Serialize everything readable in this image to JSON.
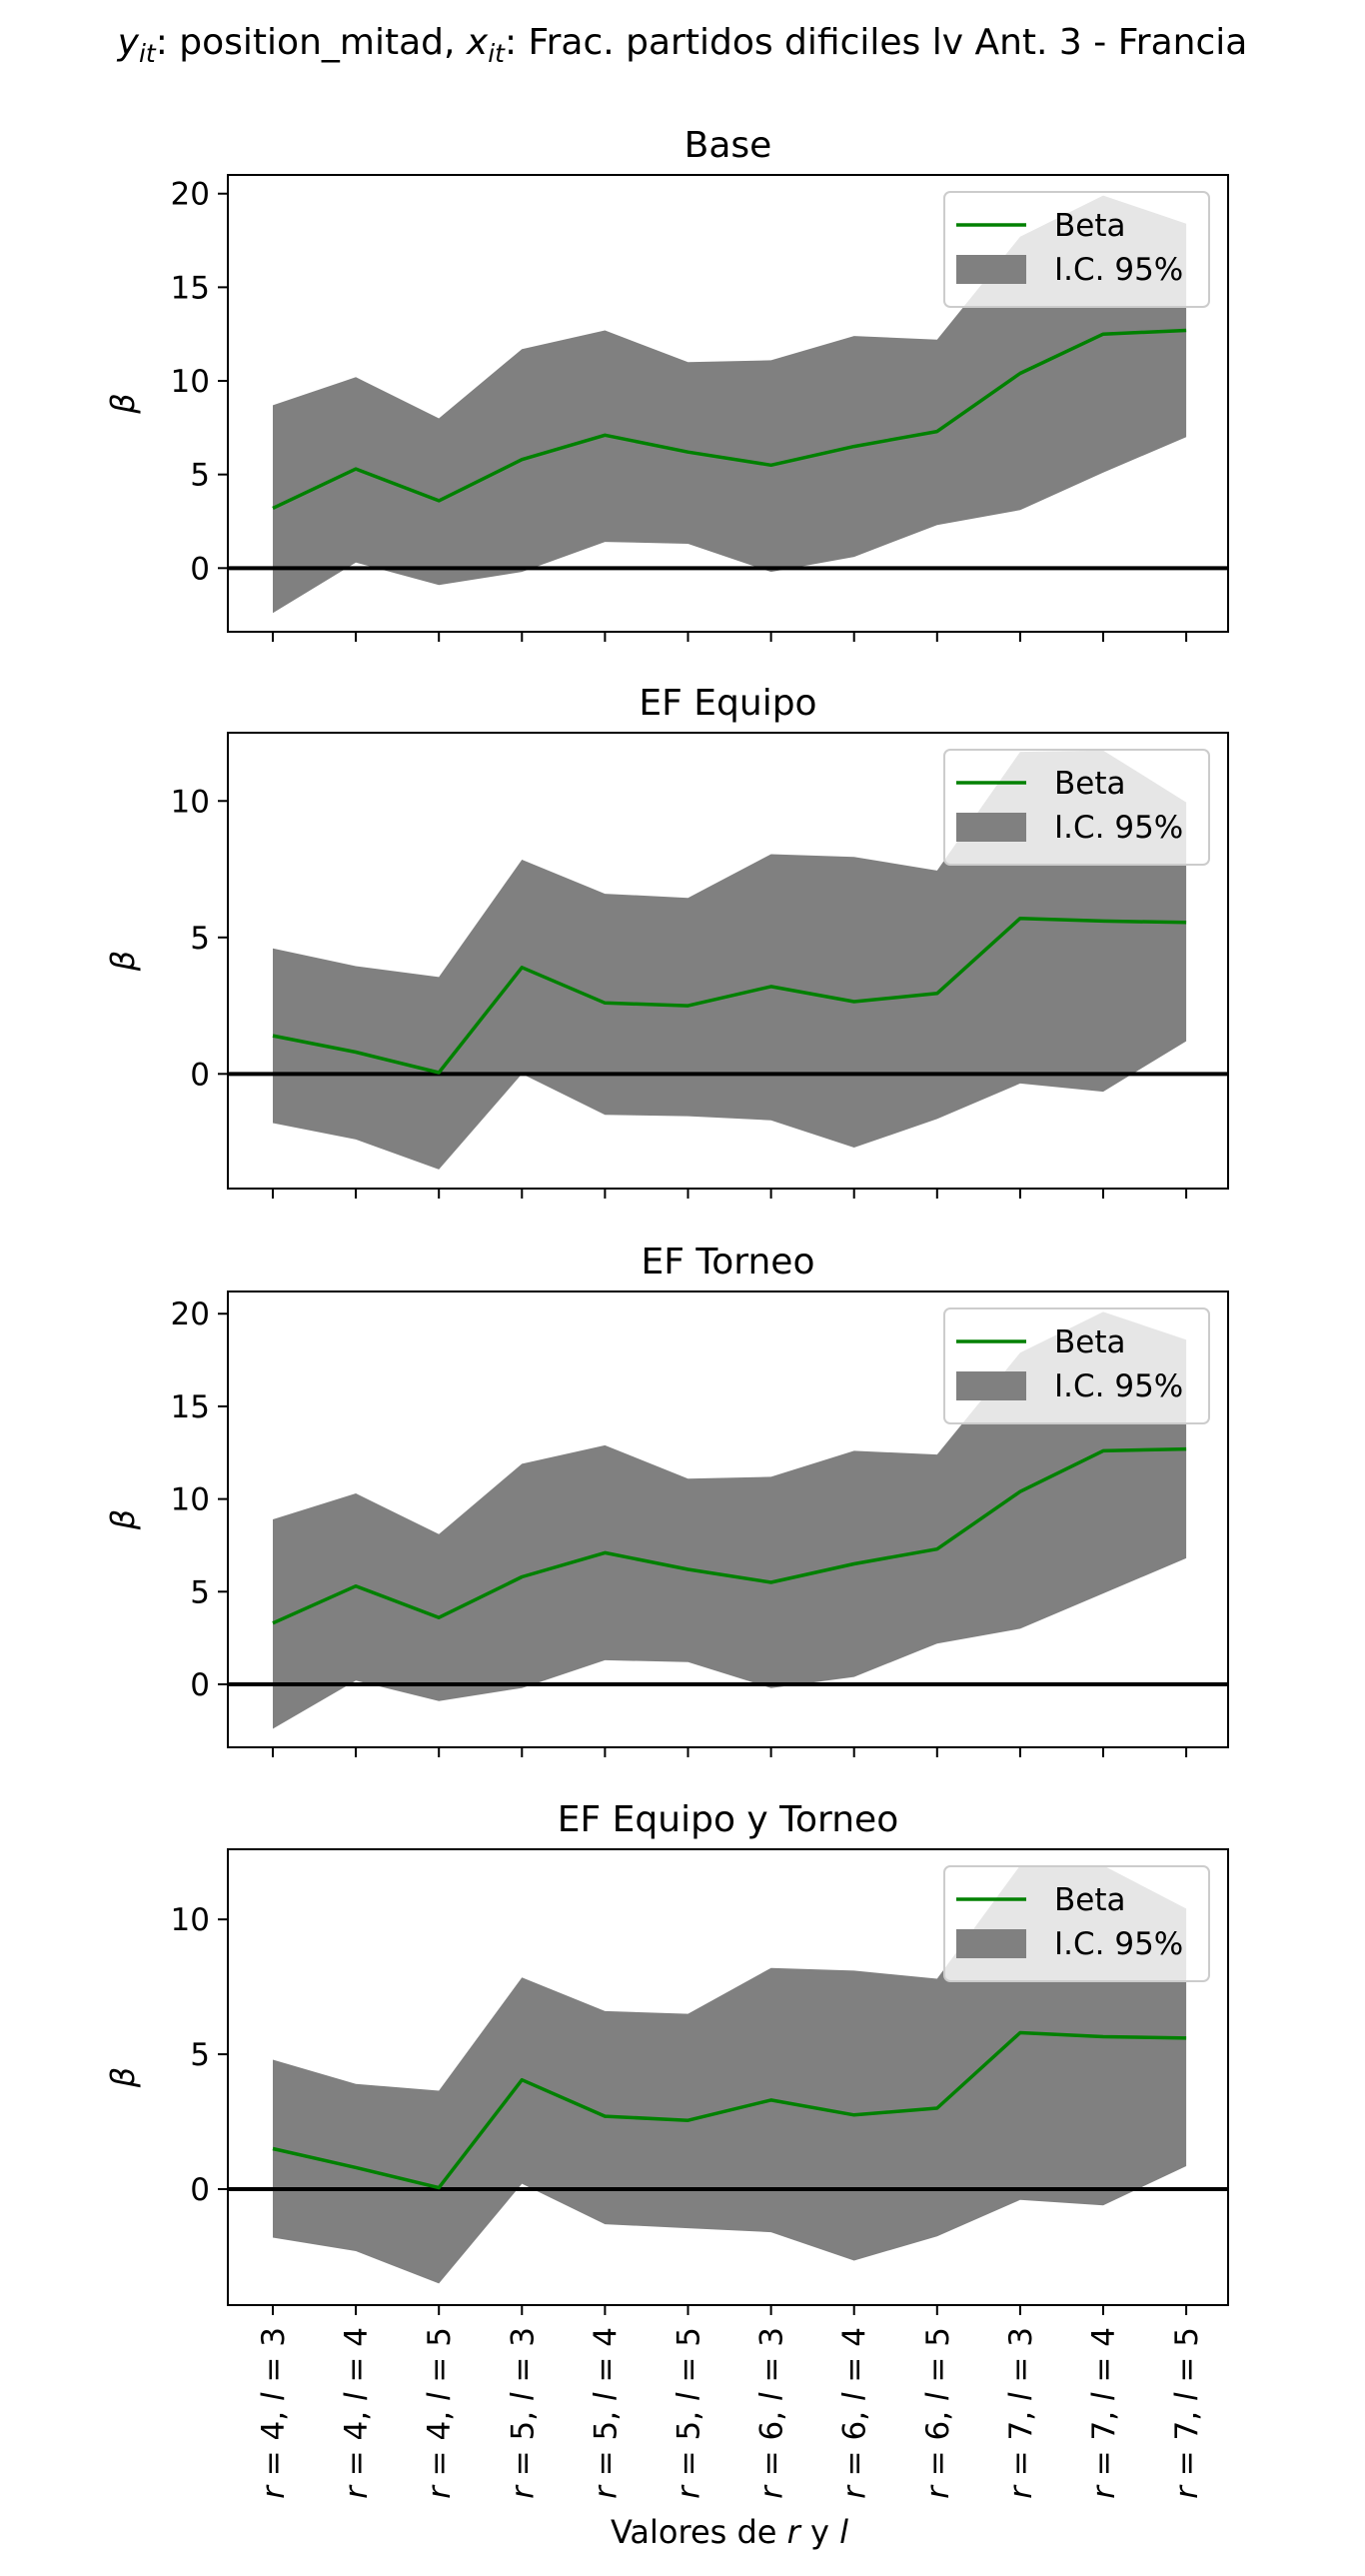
{
  "figure": {
    "suptitle": {
      "y_sym": "y",
      "y_sub": "it",
      "y_part": ": position_mitad, ",
      "x_sym": "x",
      "x_sub": "it",
      "x_part": ": Frac. partidos dificiles lv Ant. 3 - Francia"
    },
    "xlabel": {
      "pre": "Valores de ",
      "r": "r",
      "mid": " y ",
      "l": "l"
    },
    "ylabel": "β",
    "tick_labels": [
      {
        "r": "4",
        "l": "3"
      },
      {
        "r": "4",
        "l": "4"
      },
      {
        "r": "4",
        "l": "5"
      },
      {
        "r": "5",
        "l": "3"
      },
      {
        "r": "5",
        "l": "4"
      },
      {
        "r": "5",
        "l": "5"
      },
      {
        "r": "6",
        "l": "3"
      },
      {
        "r": "6",
        "l": "4"
      },
      {
        "r": "6",
        "l": "5"
      },
      {
        "r": "7",
        "l": "3"
      },
      {
        "r": "7",
        "l": "4"
      },
      {
        "r": "7",
        "l": "5"
      }
    ],
    "legend": {
      "beta_label": "Beta",
      "ci_label": "I.C. 95%",
      "placement": "top-right"
    },
    "colors": {
      "line": "#008000",
      "band": "#808080",
      "zero": "#000000"
    }
  },
  "chart_data": [
    {
      "type": "line",
      "title": "Base",
      "categories": [
        "r=4, l=3",
        "r=4, l=4",
        "r=4, l=5",
        "r=5, l=3",
        "r=5, l=4",
        "r=5, l=5",
        "r=6, l=3",
        "r=6, l=4",
        "r=6, l=5",
        "r=7, l=3",
        "r=7, l=4",
        "r=7, l=5"
      ],
      "series": [
        {
          "name": "Beta",
          "values": [
            3.2,
            5.3,
            3.6,
            5.8,
            7.1,
            6.2,
            5.5,
            6.5,
            7.3,
            10.4,
            12.5,
            12.7
          ]
        },
        {
          "name": "I.C. 95%",
          "lower": [
            -2.4,
            0.3,
            -0.9,
            -0.2,
            1.4,
            1.3,
            -0.2,
            0.6,
            2.3,
            3.1,
            5.1,
            7.0
          ],
          "upper": [
            8.7,
            10.2,
            8.0,
            11.7,
            12.7,
            11.0,
            11.1,
            12.4,
            12.2,
            17.7,
            19.9,
            18.4
          ]
        }
      ],
      "ylabel": "β",
      "ylim": [
        -3.4,
        21.0
      ],
      "yticks": [
        0,
        5,
        10,
        15,
        20
      ],
      "zero_line": true
    },
    {
      "type": "line",
      "title": "EF Equipo",
      "categories": [
        "r=4, l=3",
        "r=4, l=4",
        "r=4, l=5",
        "r=5, l=3",
        "r=5, l=4",
        "r=5, l=5",
        "r=6, l=3",
        "r=6, l=4",
        "r=6, l=5",
        "r=7, l=3",
        "r=7, l=4",
        "r=7, l=5"
      ],
      "series": [
        {
          "name": "Beta",
          "values": [
            1.4,
            0.8,
            0.05,
            3.9,
            2.6,
            2.5,
            3.2,
            2.65,
            2.95,
            5.7,
            5.6,
            5.55
          ]
        },
        {
          "name": "I.C. 95%",
          "lower": [
            -1.8,
            -2.4,
            -3.5,
            0.0,
            -1.5,
            -1.55,
            -1.7,
            -2.7,
            -1.65,
            -0.35,
            -0.65,
            1.2
          ],
          "upper": [
            4.6,
            3.95,
            3.55,
            7.85,
            6.6,
            6.45,
            8.05,
            7.95,
            7.45,
            11.8,
            11.85,
            9.95
          ]
        }
      ],
      "ylabel": "β",
      "ylim": [
        -4.2,
        12.5
      ],
      "yticks": [
        0,
        5,
        10
      ],
      "zero_line": true
    },
    {
      "type": "line",
      "title": "EF Torneo",
      "categories": [
        "r=4, l=3",
        "r=4, l=4",
        "r=4, l=5",
        "r=5, l=3",
        "r=5, l=4",
        "r=5, l=5",
        "r=6, l=3",
        "r=6, l=4",
        "r=6, l=5",
        "r=7, l=3",
        "r=7, l=4",
        "r=7, l=5"
      ],
      "series": [
        {
          "name": "Beta",
          "values": [
            3.3,
            5.3,
            3.6,
            5.8,
            7.1,
            6.2,
            5.5,
            6.5,
            7.3,
            10.4,
            12.6,
            12.7
          ]
        },
        {
          "name": "I.C. 95%",
          "lower": [
            -2.4,
            0.2,
            -0.9,
            -0.2,
            1.3,
            1.2,
            -0.2,
            0.4,
            2.2,
            3.0,
            4.9,
            6.8
          ],
          "upper": [
            8.9,
            10.3,
            8.1,
            11.9,
            12.9,
            11.1,
            11.2,
            12.6,
            12.4,
            17.9,
            20.1,
            18.6
          ]
        }
      ],
      "ylabel": "β",
      "ylim": [
        -3.4,
        21.2
      ],
      "yticks": [
        0,
        5,
        10,
        15,
        20
      ],
      "zero_line": true
    },
    {
      "type": "line",
      "title": "EF Equipo y Torneo",
      "categories": [
        "r=4, l=3",
        "r=4, l=4",
        "r=4, l=5",
        "r=5, l=3",
        "r=5, l=4",
        "r=5, l=5",
        "r=6, l=3",
        "r=6, l=4",
        "r=6, l=5",
        "r=7, l=3",
        "r=7, l=4",
        "r=7, l=5"
      ],
      "series": [
        {
          "name": "Beta",
          "values": [
            1.5,
            0.8,
            0.05,
            4.05,
            2.7,
            2.55,
            3.3,
            2.75,
            3.0,
            5.8,
            5.65,
            5.6
          ]
        },
        {
          "name": "I.C. 95%",
          "lower": [
            -1.8,
            -2.3,
            -3.5,
            0.2,
            -1.3,
            -1.45,
            -1.6,
            -2.65,
            -1.75,
            -0.4,
            -0.6,
            0.85
          ],
          "upper": [
            4.8,
            3.9,
            3.65,
            7.85,
            6.6,
            6.5,
            8.2,
            8.1,
            7.8,
            12.0,
            12.0,
            10.4
          ]
        }
      ],
      "ylabel": "β",
      "ylim": [
        -4.3,
        12.6
      ],
      "yticks": [
        0,
        5,
        10
      ],
      "zero_line": true
    }
  ]
}
